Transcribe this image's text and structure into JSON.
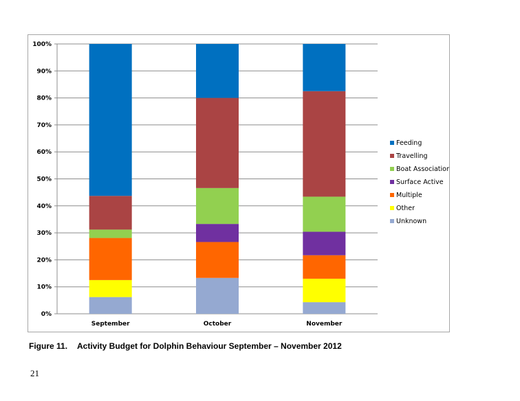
{
  "chart_data": {
    "type": "bar",
    "stacked": true,
    "percent_stacked": true,
    "categories": [
      "September",
      "October",
      "November"
    ],
    "series": [
      {
        "name": "Unknown",
        "color": "#95a9d1",
        "values": [
          6.2,
          13.3,
          4.3
        ]
      },
      {
        "name": "Other",
        "color": "#ffff00",
        "values": [
          6.3,
          0,
          8.7
        ]
      },
      {
        "name": "Multiple",
        "color": "#ff6600",
        "values": [
          15.6,
          13.3,
          8.7
        ]
      },
      {
        "name": "Surface Active",
        "color": "#7030a0",
        "values": [
          0,
          6.7,
          8.7
        ]
      },
      {
        "name": "Boat Association",
        "color": "#92d050",
        "values": [
          3.1,
          13.3,
          13.0
        ]
      },
      {
        "name": "Travelling",
        "color": "#aa4444",
        "values": [
          12.5,
          33.4,
          39.1
        ]
      },
      {
        "name": "Feeding",
        "color": "#0070c0",
        "values": [
          56.3,
          20.0,
          17.5
        ]
      }
    ],
    "y_ticks": [
      "0%",
      "10%",
      "20%",
      "30%",
      "40%",
      "50%",
      "60%",
      "70%",
      "80%",
      "90%",
      "100%"
    ],
    "ylim": [
      0,
      100
    ],
    "grid": true,
    "legend_position": "right",
    "legend_order": [
      "Feeding",
      "Travelling",
      "Boat Association",
      "Surface Active",
      "Multiple",
      "Other",
      "Unknown"
    ]
  },
  "caption": {
    "number": "Figure 11.",
    "text": "Activity Budget for Dolphin Behaviour September – November 2012"
  },
  "page_number": "21"
}
